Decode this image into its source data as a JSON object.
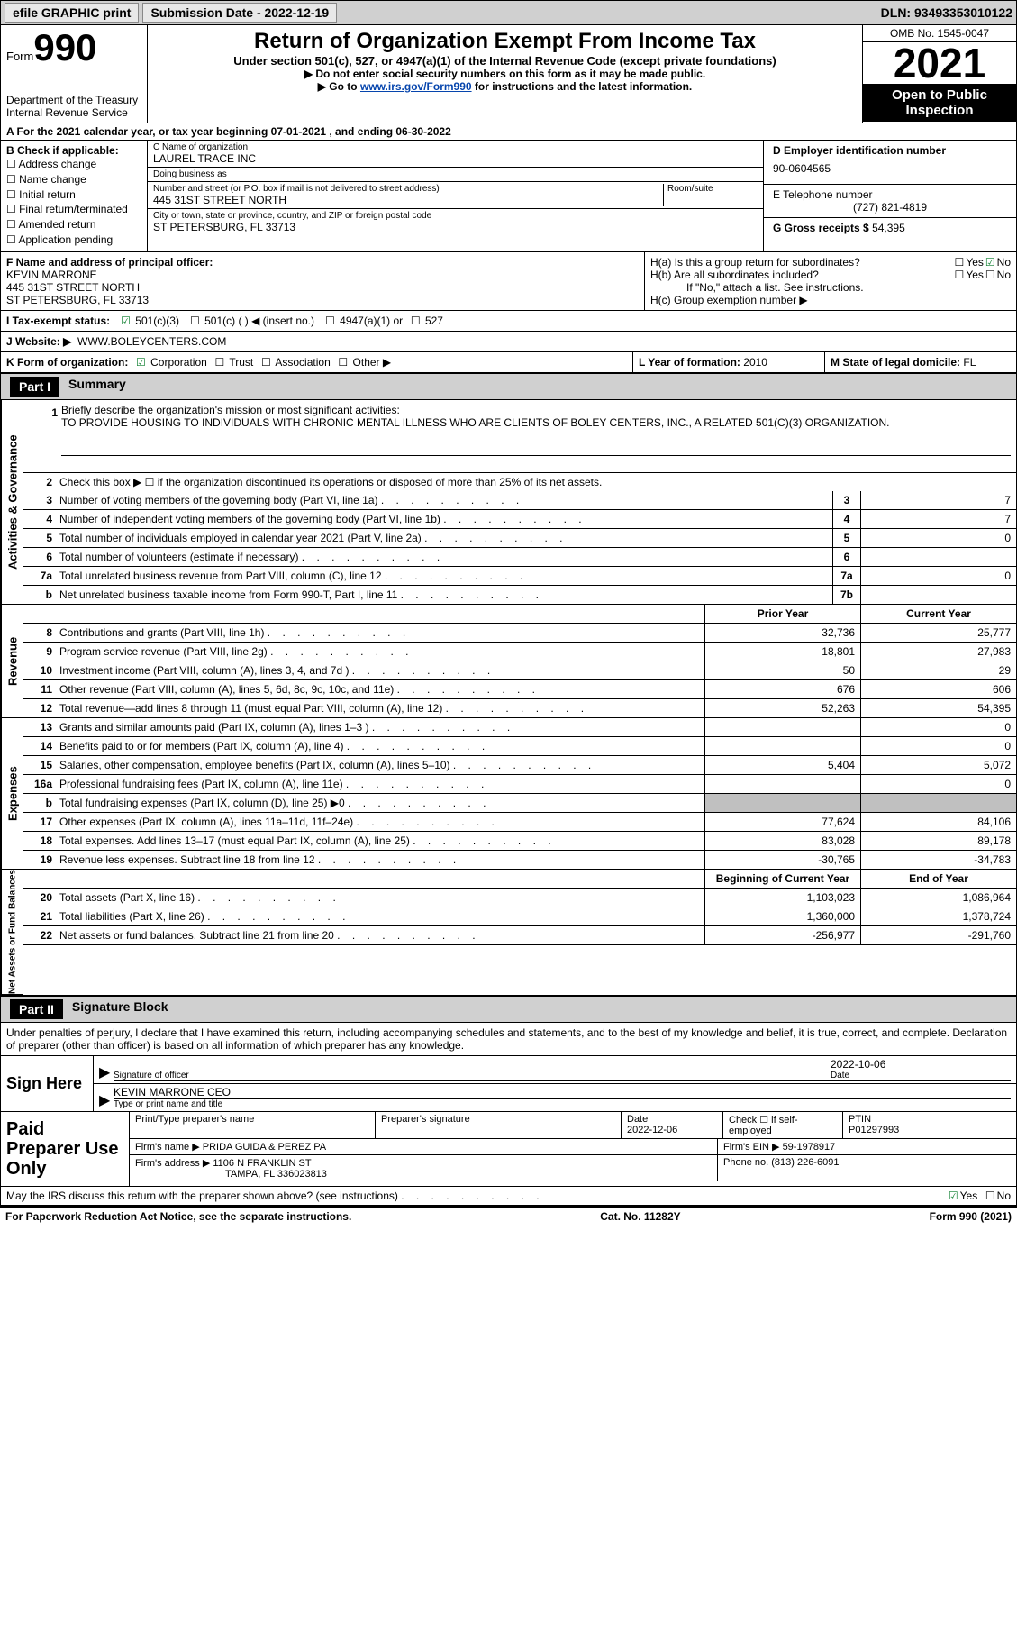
{
  "topbar": {
    "efile": "efile GRAPHIC print",
    "submission": "Submission Date - 2022-12-19",
    "dln": "DLN: 93493353010122"
  },
  "header": {
    "form_word": "Form",
    "form_num": "990",
    "dept": "Department of the Treasury",
    "irs": "Internal Revenue Service",
    "title": "Return of Organization Exempt From Income Tax",
    "subtitle": "Under section 501(c), 527, or 4947(a)(1) of the Internal Revenue Code (except private foundations)",
    "note1": "Do not enter social security numbers on this form as it may be made public.",
    "note2_pre": "Go to ",
    "note2_link": "www.irs.gov/Form990",
    "note2_post": " for instructions and the latest information.",
    "omb": "OMB No. 1545-0047",
    "year": "2021",
    "open": "Open to Public Inspection"
  },
  "lineA": "A For the 2021 calendar year, or tax year beginning 07-01-2021   , and ending 06-30-2022",
  "boxB": {
    "label": "B Check if applicable:",
    "opts": [
      "Address change",
      "Name change",
      "Initial return",
      "Final return/terminated",
      "Amended return",
      "Application pending"
    ]
  },
  "boxC": {
    "name_lbl": "C Name of organization",
    "name": "LAUREL TRACE INC",
    "dba_lbl": "Doing business as",
    "dba": "",
    "street_lbl": "Number and street (or P.O. box if mail is not delivered to street address)",
    "room_lbl": "Room/suite",
    "street": "445 31ST STREET NORTH",
    "city_lbl": "City or town, state or province, country, and ZIP or foreign postal code",
    "city": "ST PETERSBURG, FL  33713"
  },
  "boxD": {
    "ein_lbl": "D Employer identification number",
    "ein": "90-0604565",
    "phone_lbl": "E Telephone number",
    "phone": "(727) 821-4819",
    "gross_lbl": "G Gross receipts $",
    "gross": "54,395"
  },
  "boxF": {
    "lbl": "F Name and address of principal officer:",
    "name": "KEVIN MARRONE",
    "addr1": "445 31ST STREET NORTH",
    "addr2": "ST PETERSBURG, FL  33713"
  },
  "boxH": {
    "a": "H(a)  Is this a group return for subordinates?",
    "b": "H(b)  Are all subordinates included?",
    "b_note": "If \"No,\" attach a list. See instructions.",
    "c": "H(c)  Group exemption number ▶"
  },
  "boxI": {
    "lbl": "I   Tax-exempt status:",
    "o1": "501(c)(3)",
    "o2": "501(c) (  ) ◀ (insert no.)",
    "o3": "4947(a)(1) or",
    "o4": "527"
  },
  "boxJ": {
    "lbl": "J   Website: ▶",
    "val": "WWW.BOLEYCENTERS.COM"
  },
  "boxK": {
    "lbl": "K Form of organization:",
    "o1": "Corporation",
    "o2": "Trust",
    "o3": "Association",
    "o4": "Other ▶"
  },
  "boxL": {
    "lbl": "L Year of formation:",
    "val": "2010"
  },
  "boxM": {
    "lbl": "M State of legal domicile:",
    "val": "FL"
  },
  "part1": {
    "hdr": "Part I",
    "title": "Summary"
  },
  "mission": {
    "num": "1",
    "lbl": "Briefly describe the organization's mission or most significant activities:",
    "text": "TO PROVIDE HOUSING TO INDIVIDUALS WITH CHRONIC MENTAL ILLNESS WHO ARE CLIENTS OF BOLEY CENTERS, INC., A RELATED 501(C)(3) ORGANIZATION."
  },
  "line2": "Check this box ▶ ☐  if the organization discontinued its operations or disposed of more than 25% of its net assets.",
  "govlines": [
    {
      "n": "3",
      "d": "Number of voting members of the governing body (Part VI, line 1a)",
      "b": "3",
      "v": "7"
    },
    {
      "n": "4",
      "d": "Number of independent voting members of the governing body (Part VI, line 1b)",
      "b": "4",
      "v": "7"
    },
    {
      "n": "5",
      "d": "Total number of individuals employed in calendar year 2021 (Part V, line 2a)",
      "b": "5",
      "v": "0"
    },
    {
      "n": "6",
      "d": "Total number of volunteers (estimate if necessary)",
      "b": "6",
      "v": ""
    },
    {
      "n": "7a",
      "d": "Total unrelated business revenue from Part VIII, column (C), line 12",
      "b": "7a",
      "v": "0"
    },
    {
      "n": "b",
      "d": "Net unrelated business taxable income from Form 990-T, Part I, line 11",
      "b": "7b",
      "v": ""
    }
  ],
  "pycy_hdr": {
    "prior": "Prior Year",
    "current": "Current Year"
  },
  "revenue": [
    {
      "n": "8",
      "d": "Contributions and grants (Part VIII, line 1h)",
      "p": "32,736",
      "c": "25,777"
    },
    {
      "n": "9",
      "d": "Program service revenue (Part VIII, line 2g)",
      "p": "18,801",
      "c": "27,983"
    },
    {
      "n": "10",
      "d": "Investment income (Part VIII, column (A), lines 3, 4, and 7d )",
      "p": "50",
      "c": "29"
    },
    {
      "n": "11",
      "d": "Other revenue (Part VIII, column (A), lines 5, 6d, 8c, 9c, 10c, and 11e)",
      "p": "676",
      "c": "606"
    },
    {
      "n": "12",
      "d": "Total revenue—add lines 8 through 11 (must equal Part VIII, column (A), line 12)",
      "p": "52,263",
      "c": "54,395"
    }
  ],
  "expenses": [
    {
      "n": "13",
      "d": "Grants and similar amounts paid (Part IX, column (A), lines 1–3 )",
      "p": "",
      "c": "0"
    },
    {
      "n": "14",
      "d": "Benefits paid to or for members (Part IX, column (A), line 4)",
      "p": "",
      "c": "0"
    },
    {
      "n": "15",
      "d": "Salaries, other compensation, employee benefits (Part IX, column (A), lines 5–10)",
      "p": "5,404",
      "c": "5,072"
    },
    {
      "n": "16a",
      "d": "Professional fundraising fees (Part IX, column (A), line 11e)",
      "p": "",
      "c": "0"
    },
    {
      "n": "b",
      "d": "Total fundraising expenses (Part IX, column (D), line 25) ▶0",
      "p": "SHADE",
      "c": "SHADE"
    },
    {
      "n": "17",
      "d": "Other expenses (Part IX, column (A), lines 11a–11d, 11f–24e)",
      "p": "77,624",
      "c": "84,106"
    },
    {
      "n": "18",
      "d": "Total expenses. Add lines 13–17 (must equal Part IX, column (A), line 25)",
      "p": "83,028",
      "c": "89,178"
    },
    {
      "n": "19",
      "d": "Revenue less expenses. Subtract line 18 from line 12",
      "p": "-30,765",
      "c": "-34,783"
    }
  ],
  "na_hdr": {
    "prior": "Beginning of Current Year",
    "current": "End of Year"
  },
  "netassets": [
    {
      "n": "20",
      "d": "Total assets (Part X, line 16)",
      "p": "1,103,023",
      "c": "1,086,964"
    },
    {
      "n": "21",
      "d": "Total liabilities (Part X, line 26)",
      "p": "1,360,000",
      "c": "1,378,724"
    },
    {
      "n": "22",
      "d": "Net assets or fund balances. Subtract line 21 from line 20",
      "p": "-256,977",
      "c": "-291,760"
    }
  ],
  "side": {
    "gov": "Activities & Governance",
    "rev": "Revenue",
    "exp": "Expenses",
    "na": "Net Assets or Fund Balances"
  },
  "part2": {
    "hdr": "Part II",
    "title": "Signature Block",
    "declare": "Under penalties of perjury, I declare that I have examined this return, including accompanying schedules and statements, and to the best of my knowledge and belief, it is true, correct, and complete. Declaration of preparer (other than officer) is based on all information of which preparer has any knowledge."
  },
  "sign": {
    "here": "Sign Here",
    "sig_lbl": "Signature of officer",
    "date": "2022-10-06",
    "date_lbl": "Date",
    "name": "KEVIN MARRONE CEO",
    "name_lbl": "Type or print name and title"
  },
  "paid": {
    "hdr": "Paid Preparer Use Only",
    "print_lbl": "Print/Type preparer's name",
    "sig_lbl": "Preparer's signature",
    "date_lbl": "Date",
    "date": "2022-12-06",
    "check_lbl": "Check ☐ if self-employed",
    "ptin_lbl": "PTIN",
    "ptin": "P01297993",
    "firm_name_lbl": "Firm's name    ▶",
    "firm_name": "PRIDA GUIDA & PEREZ PA",
    "firm_ein_lbl": "Firm's EIN ▶",
    "firm_ein": "59-1978917",
    "firm_addr_lbl": "Firm's address ▶",
    "firm_addr1": "1106 N FRANKLIN ST",
    "firm_addr2": "TAMPA, FL  336023813",
    "firm_phone_lbl": "Phone no.",
    "firm_phone": "(813) 226-6091"
  },
  "footer": {
    "discuss": "May the IRS discuss this return with the preparer shown above? (see instructions)",
    "paperwork": "For Paperwork Reduction Act Notice, see the separate instructions.",
    "cat": "Cat. No. 11282Y",
    "formyr": "Form 990 (2021)"
  }
}
